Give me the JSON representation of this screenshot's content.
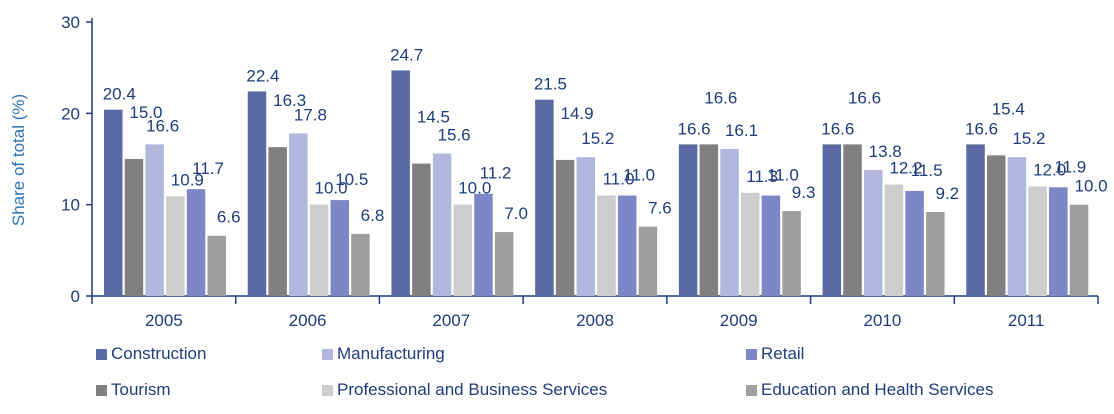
{
  "chart_data": {
    "type": "bar",
    "ylabel": "Share of total (%)",
    "xlabel": "",
    "ylim": [
      0,
      30
    ],
    "yticks": [
      0,
      10,
      20,
      30
    ],
    "categories": [
      "2005",
      "2006",
      "2007",
      "2008",
      "2009",
      "2010",
      "2011"
    ],
    "series": [
      {
        "name": "Construction",
        "color": "#5b6aa3",
        "values": [
          20.4,
          22.4,
          24.7,
          21.5,
          16.6,
          16.6,
          16.6
        ]
      },
      {
        "name": "Tourism",
        "color": "#808080",
        "values": [
          15.0,
          16.3,
          14.5,
          14.9,
          16.6,
          16.6,
          15.4
        ]
      },
      {
        "name": "Manufacturing",
        "color": "#b3b6dd",
        "values": [
          16.6,
          17.8,
          15.6,
          15.2,
          16.1,
          13.8,
          15.2
        ]
      },
      {
        "name": "Professional and Business Services",
        "color": "#cdcdcd",
        "values": [
          10.9,
          10.0,
          10.0,
          11.0,
          11.3,
          12.2,
          12.0
        ]
      },
      {
        "name": "Retail",
        "color": "#7d87c5",
        "values": [
          11.7,
          10.5,
          11.2,
          11.0,
          11.0,
          11.5,
          11.9
        ]
      },
      {
        "name": "Education and Health Services",
        "color": "#9f9f9f",
        "values": [
          6.6,
          6.8,
          7.0,
          7.6,
          9.3,
          9.2,
          10.0
        ]
      }
    ],
    "legend_placement": "bottom"
  }
}
